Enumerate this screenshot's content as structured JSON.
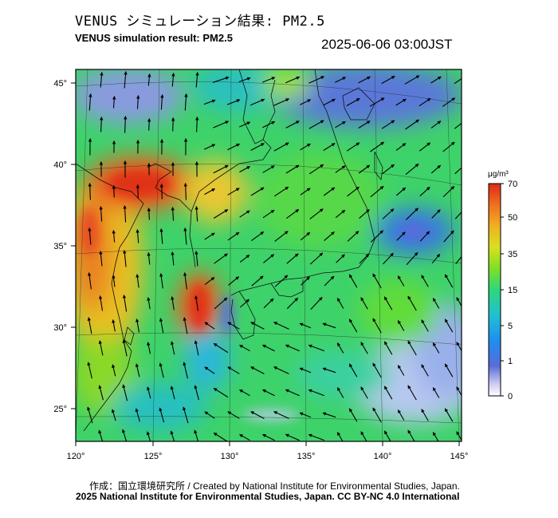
{
  "title_jp": "VENUS シミュレーション結果: PM2.5",
  "title_en": "VENUS simulation result: PM2.5",
  "timestamp": "2025-06-06 03:00JST",
  "map": {
    "lon_range": [
      120,
      145
    ],
    "lat_range": [
      23,
      46
    ],
    "lon_ticks": [
      "120°",
      "125°",
      "130°",
      "135°",
      "140°",
      "145°"
    ],
    "lat_ticks": [
      "45°",
      "40°",
      "35°",
      "30°",
      "25°"
    ],
    "field": "PM2.5 concentration with wind vectors"
  },
  "colorbar": {
    "unit": "μg/m³",
    "ticks": [
      "70",
      "50",
      "35",
      "15",
      "5",
      "1",
      "0"
    ],
    "colors": [
      "#ffffff",
      "#5a6cd8",
      "#1e8ef0",
      "#22c0d0",
      "#2fd67a",
      "#7ee026",
      "#d8e020",
      "#f0b020",
      "#f07020",
      "#e02818"
    ]
  },
  "credit_line1": "作成：国立環境研究所 / Created by National Institute for Environmental Studies, Japan.",
  "credit_line2": "2025 National Institute for Environmental Studies, Japan. CC BY-NC 4.0 International"
}
